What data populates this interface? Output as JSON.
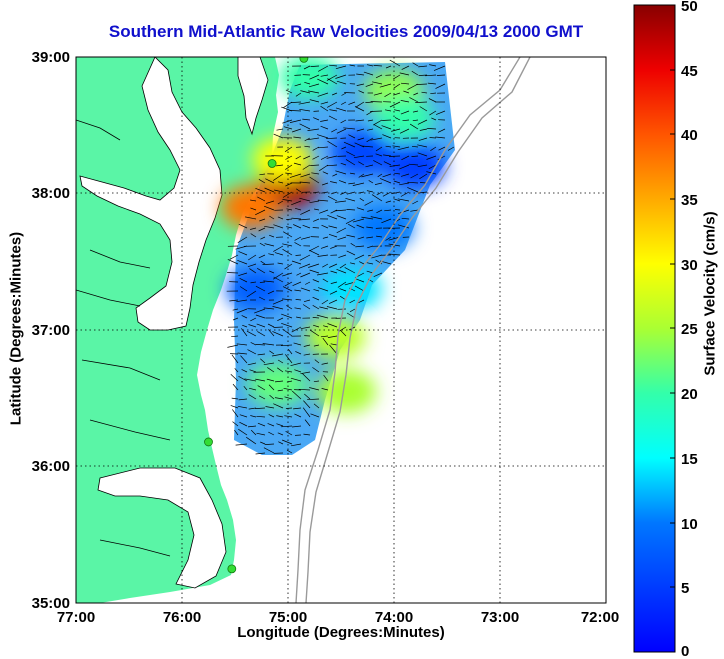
{
  "title": "Southern Mid-Atlantic Raw Velocities 2009/04/13 2000 GMT",
  "x_axis": {
    "label": "Longitude (Degrees:Minutes)",
    "ticks": [
      "77:00",
      "76:00",
      "75:00",
      "74:00",
      "73:00",
      "72:00"
    ]
  },
  "y_axis": {
    "label": "Latitude (Degrees:Minutes)",
    "ticks": [
      "39:00",
      "38:00",
      "37:00",
      "36:00",
      "35:00"
    ]
  },
  "colorbar": {
    "label": "Surface Velocity (cm/s)",
    "ticks": [
      "50",
      "45",
      "40",
      "35",
      "30",
      "25",
      "20",
      "15",
      "10",
      "5",
      "0"
    ],
    "range": [
      0,
      50
    ],
    "colormap": "jet"
  },
  "colors": {
    "title": "#1010cc",
    "land": "#5af5a6",
    "water": "#ffffff",
    "station": "#33dd33",
    "bathymetry": "#9a9a9a"
  },
  "chart_data": {
    "type": "heatmap",
    "title": "Southern Mid-Atlantic Raw Velocities 2009/04/13 2000 GMT",
    "xlabel": "Longitude (Degrees:Minutes)",
    "ylabel": "Latitude (Degrees:Minutes)",
    "xlim": [
      -77,
      -72
    ],
    "ylim": [
      35,
      39
    ],
    "grid": true,
    "colorbar_label": "Surface Velocity (cm/s)",
    "crange": [
      0,
      50
    ],
    "stations": [
      {
        "lon": -74.85,
        "lat": 38.99
      },
      {
        "lon": -75.15,
        "lat": 38.22
      },
      {
        "lon": -75.75,
        "lat": 36.18
      },
      {
        "lon": -75.53,
        "lat": 35.25
      }
    ],
    "velocity_patches": [
      {
        "lon": -75.0,
        "lat": 38.05,
        "speed": 48
      },
      {
        "lon": -75.35,
        "lat": 37.9,
        "speed": 38
      },
      {
        "lon": -75.05,
        "lat": 38.25,
        "speed": 30
      },
      {
        "lon": -74.55,
        "lat": 36.95,
        "speed": 26
      },
      {
        "lon": -74.45,
        "lat": 36.55,
        "speed": 25
      },
      {
        "lon": -75.1,
        "lat": 36.6,
        "speed": 22
      },
      {
        "lon": -74.8,
        "lat": 38.85,
        "speed": 20
      },
      {
        "lon": -74.0,
        "lat": 38.75,
        "speed": 24
      },
      {
        "lon": -73.9,
        "lat": 38.55,
        "speed": 20
      },
      {
        "lon": -74.4,
        "lat": 37.3,
        "speed": 14
      },
      {
        "lon": -75.3,
        "lat": 37.3,
        "speed": 8
      },
      {
        "lon": -74.3,
        "lat": 38.3,
        "speed": 6
      },
      {
        "lon": -73.8,
        "lat": 38.2,
        "speed": 5
      },
      {
        "lon": -74.1,
        "lat": 37.75,
        "speed": 10
      }
    ]
  }
}
